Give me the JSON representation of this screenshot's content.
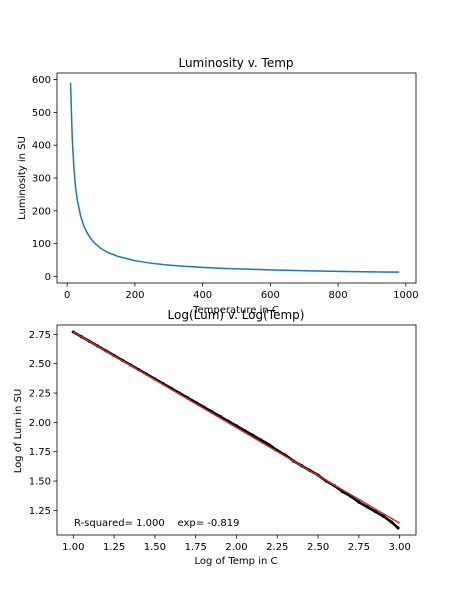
{
  "chart_data": [
    {
      "type": "line",
      "title": "Luminosity v. Temp",
      "xlabel": "Temperature in C",
      "ylabel": "Luminosity in SU",
      "xlim": [
        -30,
        1030
      ],
      "ylim": [
        -20,
        620
      ],
      "xticks": [
        0,
        200,
        400,
        600,
        800,
        1000
      ],
      "yticks": [
        0,
        100,
        200,
        300,
        400,
        500,
        600
      ],
      "grid": false,
      "legend": "none",
      "series": [
        {
          "color": "#1f77b4",
          "x": [
            10,
            15,
            20,
            25,
            30,
            40,
            50,
            60,
            70,
            80,
            100,
            120,
            150,
            200,
            250,
            300,
            350,
            400,
            450,
            500,
            600,
            700,
            800,
            900,
            980
          ],
          "y": [
            590,
            420,
            330,
            270,
            232,
            183,
            152,
            131,
            115,
            103,
            85,
            73,
            61,
            48,
            40,
            34.5,
            30.5,
            27.5,
            25,
            23,
            20,
            17.5,
            15.5,
            14,
            13
          ]
        }
      ]
    },
    {
      "type": "scatter",
      "title": "Log(Lum) v. Log(Temp)",
      "xlabel": "Log of Temp in C",
      "ylabel": "Log of Lum in SU",
      "xlim": [
        0.9,
        3.1
      ],
      "ylim": [
        1.04,
        2.83
      ],
      "xticks": [
        1.0,
        1.25,
        1.5,
        1.75,
        2.0,
        2.25,
        2.5,
        2.75,
        3.0
      ],
      "yticks": [
        1.25,
        1.5,
        1.75,
        2.0,
        2.25,
        2.5,
        2.75
      ],
      "grid": false,
      "legend": "none",
      "annotation": "R-squared= 1.000    exp= -0.819",
      "series": [
        {
          "type": "scatter",
          "color": "#000000",
          "x": [
            1.0,
            1.05,
            1.1,
            1.15,
            1.2,
            1.25,
            1.3,
            1.35,
            1.4,
            1.45,
            1.5,
            1.55,
            1.6,
            1.65,
            1.7,
            1.75,
            1.8,
            1.85,
            1.9,
            1.95,
            2.0,
            2.05,
            2.1,
            2.15,
            2.2,
            2.25,
            2.3,
            2.35,
            2.4,
            2.45,
            2.5,
            2.55,
            2.6,
            2.65,
            2.7,
            2.75,
            2.8,
            2.85,
            2.9,
            2.95,
            2.99
          ],
          "y": [
            2.77,
            2.73,
            2.69,
            2.65,
            2.61,
            2.57,
            2.53,
            2.49,
            2.45,
            2.41,
            2.37,
            2.33,
            2.29,
            2.25,
            2.21,
            2.17,
            2.13,
            2.09,
            2.05,
            2.01,
            1.97,
            1.93,
            1.89,
            1.85,
            1.81,
            1.76,
            1.72,
            1.67,
            1.63,
            1.59,
            1.55,
            1.5,
            1.46,
            1.41,
            1.37,
            1.32,
            1.28,
            1.24,
            1.2,
            1.15,
            1.1
          ]
        },
        {
          "type": "line",
          "color": "#d62728",
          "x": [
            1.0,
            3.0
          ],
          "y": [
            2.77,
            1.14
          ]
        }
      ]
    }
  ]
}
